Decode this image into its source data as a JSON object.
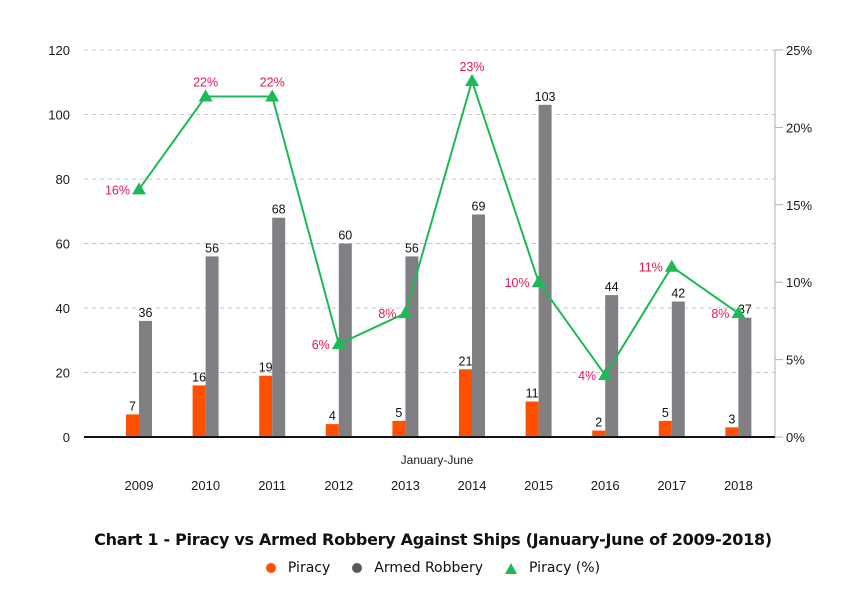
{
  "chart_data": {
    "type": "bar",
    "title": "Chart 1 - Piracy vs Armed Robbery Against Ships (January-June of 2009-2018)",
    "xlabel": "January-June",
    "ylabel": "",
    "y2label": "",
    "categories": [
      "2009",
      "2010",
      "2011",
      "2012",
      "2013",
      "2014",
      "2015",
      "2016",
      "2017",
      "2018"
    ],
    "ylim": [
      0,
      120
    ],
    "yticks": [
      "0",
      "20",
      "40",
      "60",
      "80",
      "100",
      "120"
    ],
    "y2lim": [
      0,
      25
    ],
    "y2ticks": [
      "0%",
      "5%",
      "10%",
      "15%",
      "20%",
      "25%"
    ],
    "grid": true,
    "legend_position": "bottom-center",
    "series": [
      {
        "name": "Piracy",
        "type": "bar",
        "axis": "left",
        "color": "#ff5000",
        "values": [
          7,
          16,
          19,
          4,
          5,
          21,
          11,
          2,
          5,
          3
        ]
      },
      {
        "name": "Armed Robbery",
        "type": "bar",
        "axis": "left",
        "color": "#808084",
        "values": [
          36,
          56,
          68,
          60,
          56,
          69,
          103,
          44,
          42,
          37
        ]
      },
      {
        "name": "Piracy (%)",
        "type": "line",
        "axis": "right",
        "marker": "triangle",
        "color": "#1db954",
        "label_color": "#e8174f",
        "values": [
          16,
          22,
          22,
          6,
          8,
          23,
          10,
          4,
          11,
          8
        ],
        "labels": [
          "16%",
          "22%",
          "22%",
          "6%",
          "8%",
          "23%",
          "10%",
          "4%",
          "11%",
          "8%"
        ]
      }
    ]
  },
  "legend": {
    "items": [
      {
        "label": "Piracy",
        "marker": "circle",
        "color": "#ff5000"
      },
      {
        "label": "Armed Robbery",
        "marker": "circle",
        "color": "#58585a"
      },
      {
        "label": "Piracy (%)",
        "marker": "triangle",
        "color": "#1db954"
      }
    ]
  }
}
